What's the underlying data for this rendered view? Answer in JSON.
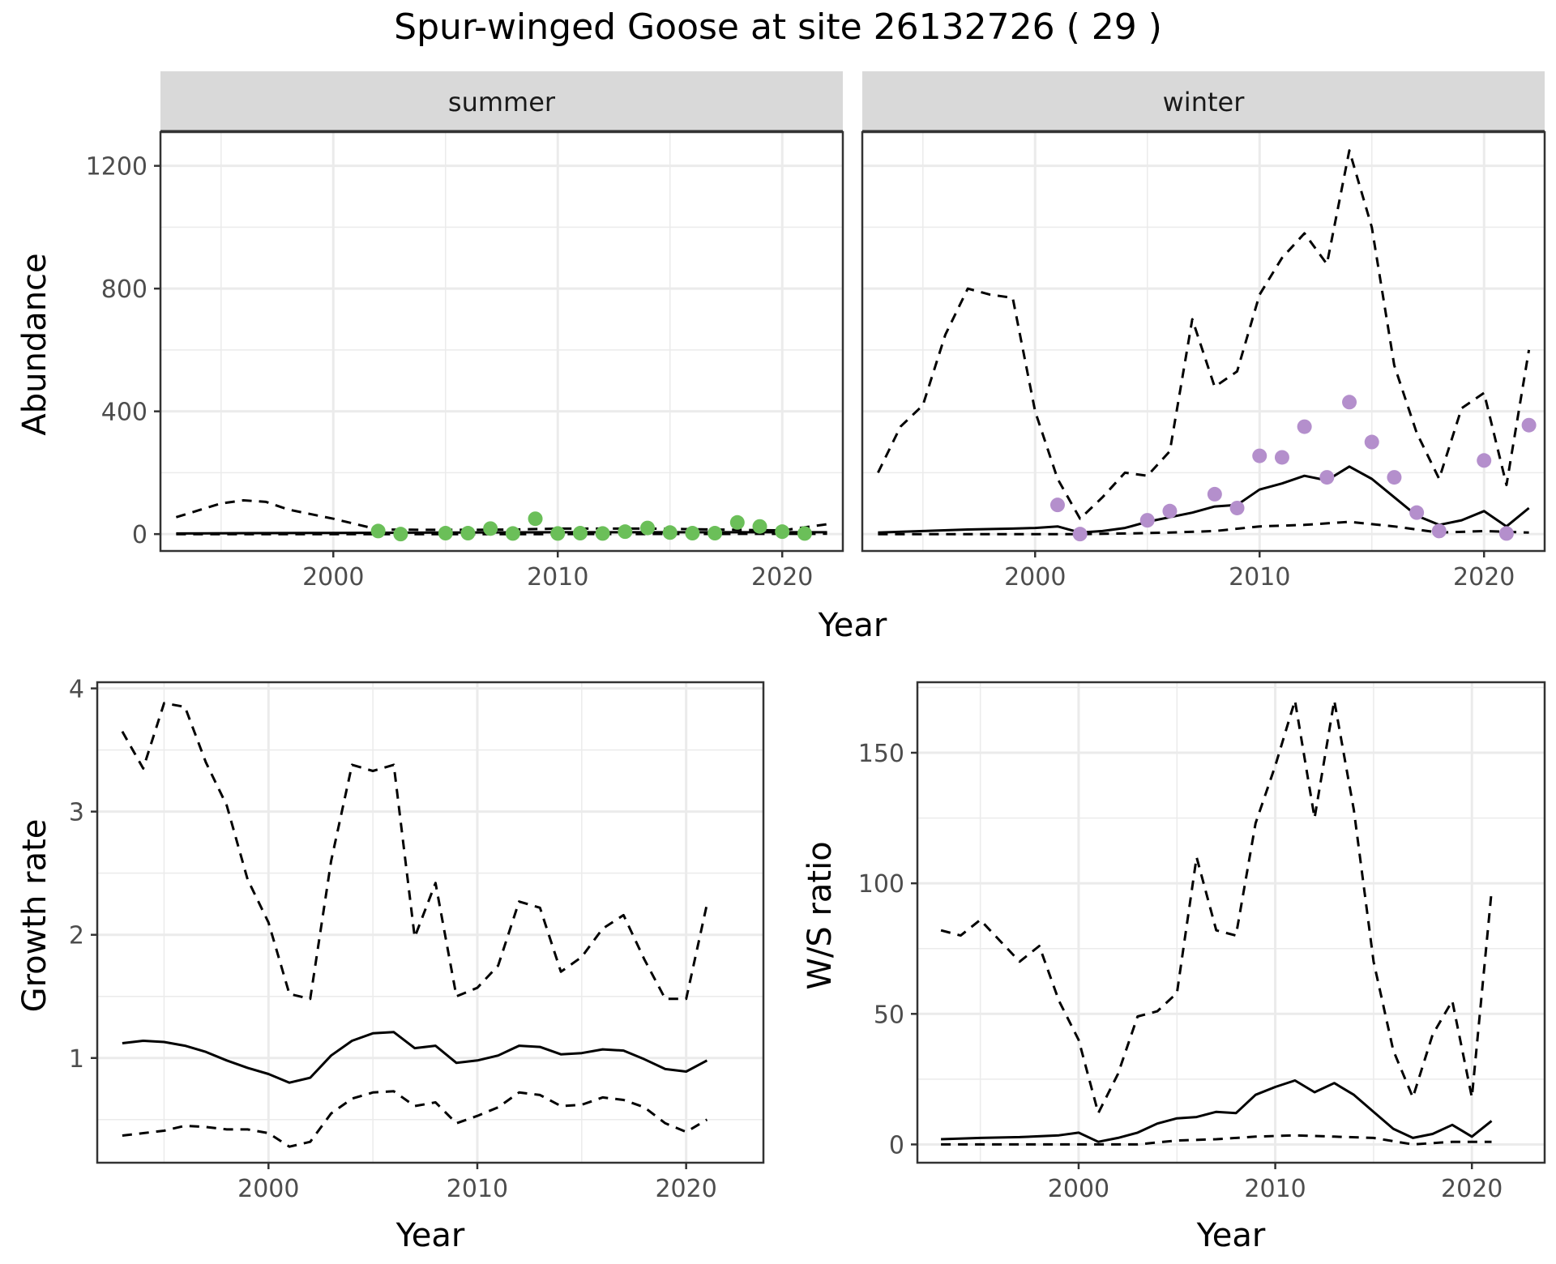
{
  "title": "Spur-winged Goose at site 26132726 ( 29 )",
  "colors": {
    "summer_points": "#6bbf59",
    "winter_points": "#b48fcc",
    "strip_bg": "#d9d9d9",
    "line": "#000000"
  },
  "chart_data": [
    {
      "id": "abundance",
      "type": "line",
      "facets": [
        "summer",
        "winter"
      ],
      "xlabel": "Year",
      "ylabel": "Abundance",
      "xlim": [
        1992.3,
        2022.7
      ],
      "ylim": [
        -55,
        1310
      ],
      "xticks": [
        2000,
        2010,
        2020
      ],
      "yticks": [
        0,
        400,
        800,
        1200
      ],
      "grid": true,
      "panels": [
        {
          "facet": "summer",
          "point_color": "#6bbf59",
          "points": {
            "x": [
              2002,
              2003,
              2005,
              2006,
              2007,
              2008,
              2009,
              2010,
              2011,
              2012,
              2013,
              2014,
              2015,
              2016,
              2017,
              2018,
              2019,
              2020,
              2021
            ],
            "y": [
              10,
              0,
              3,
              3,
              18,
              2,
              50,
              2,
              3,
              2,
              8,
              20,
              5,
              3,
              3,
              38,
              25,
              8,
              2
            ]
          },
          "fit": {
            "x": [
              1993,
              1996,
              2000,
              2005,
              2010,
              2015,
              2020,
              2022
            ],
            "y": [
              2,
              3,
              4,
              5,
              6,
              6,
              6,
              6
            ]
          },
          "upper": {
            "x": [
              1993,
              1995,
              1996,
              1997,
              1998,
              2000,
              2002,
              2004,
              2006,
              2008,
              2010,
              2012,
              2014,
              2016,
              2018,
              2020,
              2022
            ],
            "y": [
              55,
              100,
              110,
              105,
              80,
              50,
              15,
              14,
              14,
              15,
              18,
              18,
              18,
              16,
              14,
              12,
              32
            ]
          },
          "lower": {
            "x": [
              1993,
              2000,
              2010,
              2022
            ],
            "y": [
              0,
              0,
              0,
              1
            ]
          }
        },
        {
          "facet": "winter",
          "point_color": "#b48fcc",
          "points": {
            "x": [
              2001,
              2002,
              2005,
              2006,
              2008,
              2009,
              2010,
              2011,
              2012,
              2013,
              2014,
              2015,
              2016,
              2017,
              2018,
              2020,
              2021,
              2022
            ],
            "y": [
              95,
              0,
              45,
              75,
              130,
              85,
              255,
              250,
              350,
              185,
              430,
              300,
              185,
              70,
              10,
              240,
              2,
              355
            ]
          },
          "fit": {
            "x": [
              1993,
              1995,
              1997,
              1999,
              2000,
              2001,
              2002,
              2003,
              2004,
              2005,
              2006,
              2007,
              2008,
              2009,
              2010,
              2011,
              2012,
              2013,
              2014,
              2015,
              2016,
              2017,
              2018,
              2019,
              2020,
              2021,
              2022
            ],
            "y": [
              5,
              10,
              15,
              18,
              20,
              25,
              5,
              10,
              20,
              40,
              55,
              70,
              90,
              95,
              145,
              165,
              190,
              175,
              220,
              180,
              120,
              60,
              30,
              45,
              75,
              25,
              85
            ]
          },
          "upper": {
            "x": [
              1993,
              1994,
              1995,
              1996,
              1997,
              1998,
              1999,
              2000,
              2001,
              2002,
              2003,
              2004,
              2005,
              2006,
              2007,
              2008,
              2009,
              2010,
              2011,
              2012,
              2013,
              2014,
              2015,
              2016,
              2017,
              2018,
              2019,
              2020,
              2021,
              2022
            ],
            "y": [
              200,
              350,
              420,
              650,
              800,
              780,
              770,
              400,
              180,
              50,
              120,
              200,
              190,
              270,
              700,
              480,
              530,
              780,
              900,
              980,
              880,
              1250,
              1000,
              550,
              330,
              180,
              410,
              460,
              160,
              600
            ]
          },
          "lower": {
            "x": [
              1993,
              2000,
              2002,
              2004,
              2006,
              2008,
              2010,
              2012,
              2014,
              2016,
              2018,
              2020,
              2022
            ],
            "y": [
              0,
              0,
              0,
              2,
              5,
              10,
              25,
              30,
              40,
              25,
              5,
              10,
              5
            ]
          }
        }
      ]
    },
    {
      "id": "growth",
      "type": "line",
      "xlabel": "Year",
      "ylabel": "Growth rate",
      "xlim": [
        1991.8,
        2023.7
      ],
      "ylim": [
        0.15,
        4.05
      ],
      "xticks": [
        2000,
        2010,
        2020
      ],
      "yticks": [
        1,
        2,
        3,
        4
      ],
      "grid": true,
      "fit": {
        "x": [
          1993,
          1994,
          1995,
          1996,
          1997,
          1998,
          1999,
          2000,
          2001,
          2002,
          2003,
          2004,
          2005,
          2006,
          2007,
          2008,
          2009,
          2010,
          2011,
          2012,
          2013,
          2014,
          2015,
          2016,
          2017,
          2018,
          2019,
          2020,
          2021
        ],
        "y": [
          1.12,
          1.14,
          1.13,
          1.1,
          1.05,
          0.98,
          0.92,
          0.87,
          0.8,
          0.84,
          1.02,
          1.14,
          1.2,
          1.21,
          1.08,
          1.1,
          0.96,
          0.98,
          1.02,
          1.1,
          1.09,
          1.03,
          1.04,
          1.07,
          1.06,
          0.99,
          0.91,
          0.89,
          0.98
        ]
      },
      "upper": {
        "x": [
          1993,
          1994,
          1995,
          1996,
          1997,
          1998,
          1999,
          2000,
          2001,
          2002,
          2003,
          2004,
          2005,
          2006,
          2007,
          2008,
          2009,
          2010,
          2011,
          2012,
          2013,
          2014,
          2015,
          2016,
          2017,
          2018,
          2019,
          2020,
          2021
        ],
        "y": [
          3.65,
          3.35,
          3.88,
          3.85,
          3.4,
          3.05,
          2.45,
          2.1,
          1.52,
          1.48,
          2.6,
          3.38,
          3.33,
          3.38,
          1.98,
          2.42,
          1.5,
          1.57,
          1.75,
          2.27,
          2.22,
          1.7,
          1.82,
          2.05,
          2.16,
          1.8,
          1.48,
          1.48,
          2.25
        ]
      },
      "lower": {
        "x": [
          1993,
          1994,
          1995,
          1996,
          1997,
          1998,
          1999,
          2000,
          2001,
          2002,
          2003,
          2004,
          2005,
          2006,
          2007,
          2008,
          2009,
          2010,
          2011,
          2012,
          2013,
          2014,
          2015,
          2016,
          2017,
          2018,
          2019,
          2020,
          2021
        ],
        "y": [
          0.37,
          0.39,
          0.41,
          0.45,
          0.44,
          0.42,
          0.42,
          0.39,
          0.28,
          0.32,
          0.55,
          0.67,
          0.72,
          0.73,
          0.61,
          0.64,
          0.47,
          0.53,
          0.6,
          0.72,
          0.7,
          0.61,
          0.62,
          0.68,
          0.66,
          0.6,
          0.47,
          0.4,
          0.5
        ]
      }
    },
    {
      "id": "ws",
      "type": "line",
      "xlabel": "Year",
      "ylabel": "W/S ratio",
      "xlim": [
        1991.8,
        2023.7
      ],
      "ylim": [
        -7,
        177
      ],
      "xticks": [
        2000,
        2010,
        2020
      ],
      "yticks": [
        0,
        50,
        100,
        150
      ],
      "grid": true,
      "fit": {
        "x": [
          1993,
          1995,
          1997,
          1999,
          2000,
          2001,
          2002,
          2003,
          2004,
          2005,
          2006,
          2007,
          2008,
          2009,
          2010,
          2011,
          2012,
          2013,
          2014,
          2015,
          2016,
          2017,
          2018,
          2019,
          2020,
          2021
        ],
        "y": [
          2,
          2.5,
          2.8,
          3.5,
          4.5,
          1,
          2.5,
          4.5,
          8,
          10,
          10.5,
          12.5,
          12,
          19,
          22,
          24.5,
          20,
          23.5,
          19,
          12.5,
          6,
          2.5,
          4,
          7.5,
          3,
          9
        ]
      },
      "upper": {
        "x": [
          1993,
          1994,
          1995,
          1996,
          1997,
          1998,
          1999,
          2000,
          2001,
          2002,
          2003,
          2004,
          2005,
          2006,
          2007,
          2008,
          2009,
          2010,
          2011,
          2012,
          2013,
          2014,
          2015,
          2016,
          2017,
          2018,
          2019,
          2020,
          2021
        ],
        "y": [
          82,
          80,
          86,
          78,
          70,
          76,
          55,
          40,
          12,
          27,
          49,
          51,
          58,
          110,
          82,
          80,
          123,
          145,
          170,
          125,
          170,
          128,
          70,
          36,
          18,
          42,
          55,
          18,
          97
        ]
      },
      "lower": {
        "x": [
          1993,
          1996,
          1999,
          2001,
          2003,
          2005,
          2007,
          2009,
          2011,
          2013,
          2015,
          2017,
          2019,
          2021
        ],
        "y": [
          0,
          0,
          0,
          0,
          0,
          1.5,
          2,
          3,
          3.5,
          3,
          2.5,
          0,
          1,
          1
        ]
      }
    }
  ]
}
